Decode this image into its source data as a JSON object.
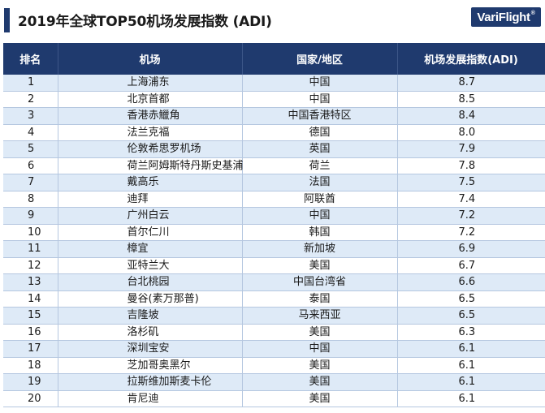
{
  "header": {
    "title": "2019年全球TOP50机场发展指数 (ADI)",
    "logo": {
      "text": "VariFlight",
      "mark": "®",
      "color": "#1f3a6e"
    }
  },
  "table": {
    "columns": [
      "排名",
      "机场",
      "国家/地区",
      "机场发展指数(ADI)"
    ],
    "header_bg": "#1f3a6e",
    "stripe_bg": "#deeaf7",
    "rows": [
      {
        "rank": "1",
        "airport": "上海浦东",
        "country": "中国",
        "adi": "8.7"
      },
      {
        "rank": "2",
        "airport": "北京首都",
        "country": "中国",
        "adi": "8.5"
      },
      {
        "rank": "3",
        "airport": "香港赤鱲角",
        "country": "中国香港特区",
        "adi": "8.4"
      },
      {
        "rank": "4",
        "airport": "法兰克福",
        "country": "德国",
        "adi": "8.0"
      },
      {
        "rank": "5",
        "airport": "伦敦希思罗机场",
        "country": "英国",
        "adi": "7.9"
      },
      {
        "rank": "6",
        "airport": "荷兰阿姆斯特丹斯史基浦",
        "country": "荷兰",
        "adi": "7.8"
      },
      {
        "rank": "7",
        "airport": "戴高乐",
        "country": "法国",
        "adi": "7.5"
      },
      {
        "rank": "8",
        "airport": "迪拜",
        "country": "阿联酋",
        "adi": "7.4"
      },
      {
        "rank": "9",
        "airport": "广州白云",
        "country": "中国",
        "adi": "7.2"
      },
      {
        "rank": "10",
        "airport": "首尔仁川",
        "country": "韩国",
        "adi": "7.2"
      },
      {
        "rank": "11",
        "airport": "樟宜",
        "country": "新加坡",
        "adi": "6.9"
      },
      {
        "rank": "12",
        "airport": "亚特兰大",
        "country": "美国",
        "adi": "6.7"
      },
      {
        "rank": "13",
        "airport": "台北桃园",
        "country": "中国台湾省",
        "adi": "6.6"
      },
      {
        "rank": "14",
        "airport": "曼谷(素万那普)",
        "country": "泰国",
        "adi": "6.5"
      },
      {
        "rank": "15",
        "airport": "吉隆坡",
        "country": "马来西亚",
        "adi": "6.5"
      },
      {
        "rank": "16",
        "airport": "洛杉矶",
        "country": "美国",
        "adi": "6.3"
      },
      {
        "rank": "17",
        "airport": "深圳宝安",
        "country": "中国",
        "adi": "6.1"
      },
      {
        "rank": "18",
        "airport": "芝加哥奥黑尔",
        "country": "美国",
        "adi": "6.1"
      },
      {
        "rank": "19",
        "airport": "拉斯维加斯麦卡伦",
        "country": "美国",
        "adi": "6.1"
      },
      {
        "rank": "20",
        "airport": "肯尼迪",
        "country": "美国",
        "adi": "6.1"
      }
    ]
  }
}
